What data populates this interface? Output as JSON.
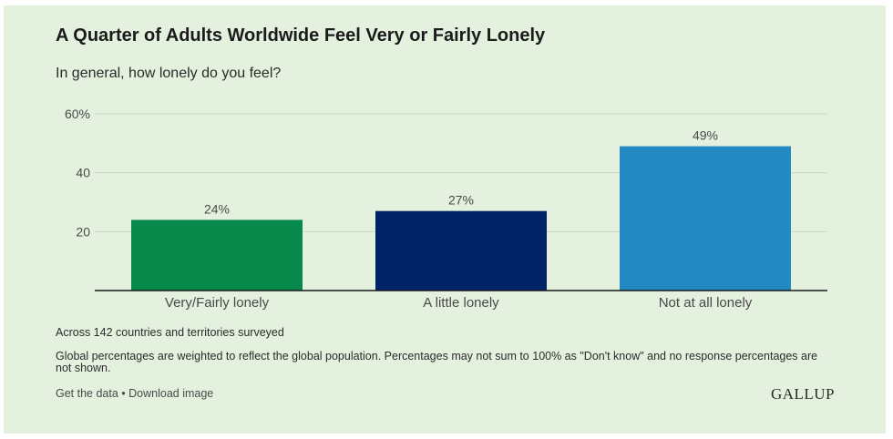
{
  "title": "A Quarter of Adults Worldwide Feel Very or Fairly Lonely",
  "subtitle": "In general, how lonely do you feel?",
  "notes": [
    "Across 142 countries and territories surveyed",
    "Global percentages are weighted to reflect the global population. Percentages may not sum to 100% as \"Don't know\" and no response percentages are not shown."
  ],
  "footer": {
    "get_data": "Get the data",
    "separator": " • ",
    "download": "Download image",
    "logo": "GALLUP"
  },
  "chart_data": {
    "type": "bar",
    "title": "A Quarter of Adults Worldwide Feel Very or Fairly Lonely",
    "subtitle": "In general, how lonely do you feel?",
    "categories": [
      "Very/Fairly lonely",
      "A little lonely",
      "Not at all lonely"
    ],
    "values": [
      24,
      27,
      49
    ],
    "value_labels": [
      "24%",
      "27%",
      "49%"
    ],
    "colors": [
      "#06894b",
      "#002267",
      "#2389c0"
    ],
    "ylim": [
      0,
      60
    ],
    "yticks": [
      20,
      40,
      60
    ],
    "ytick_labels": [
      "20",
      "40",
      "60%"
    ],
    "grid": true,
    "grid_color": "#c9d6c5",
    "axis_color": "#1b1b1b"
  }
}
